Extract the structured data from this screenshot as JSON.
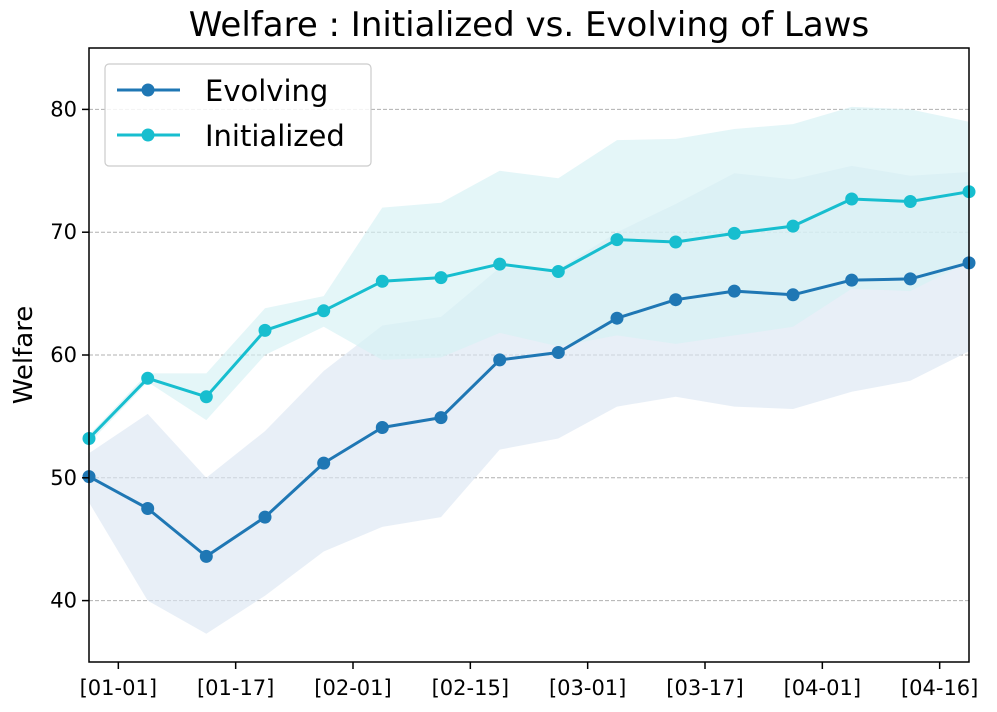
{
  "chart_data": {
    "type": "line",
    "title": "Welfare : Initialized vs. Evolving of Laws",
    "xlabel": "",
    "ylabel": "Welfare",
    "x_ticks": [
      "[01-01]",
      "[01-17]",
      "[02-01]",
      "[02-15]",
      "[03-01]",
      "[03-17]",
      "[04-01]",
      "[04-16]"
    ],
    "y_ticks": [
      40,
      50,
      60,
      70,
      80
    ],
    "ylim": [
      35,
      85
    ],
    "xlim": [
      -0.5,
      14.5
    ],
    "grid": "horizontal-dashed",
    "legend_position": "top-left",
    "series": [
      {
        "name": "Evolving",
        "color": "#1f77b4",
        "band_color": "#dbe6f3",
        "x": [
          -0.5,
          0.5,
          1.5,
          2.5,
          3.5,
          4.5,
          5.5,
          6.5,
          7.5,
          8.5,
          9.5,
          10.5,
          11.5,
          12.5,
          13.5,
          14.5
        ],
        "values": [
          50.1,
          47.5,
          43.6,
          46.8,
          51.2,
          54.1,
          54.9,
          59.6,
          60.2,
          63.0,
          64.5,
          65.2,
          64.9,
          66.1,
          66.2,
          67.5
        ],
        "upper": [
          52.0,
          55.2,
          50.0,
          53.8,
          58.7,
          62.4,
          63.1,
          67.1,
          67.0,
          70.0,
          72.3,
          74.8,
          74.3,
          75.4,
          74.6,
          74.9
        ],
        "lower": [
          48.0,
          40.0,
          37.3,
          40.4,
          44.0,
          46.0,
          46.8,
          52.3,
          53.2,
          55.8,
          56.6,
          55.8,
          55.6,
          57.0,
          57.9,
          60.3
        ]
      },
      {
        "name": "Initialized",
        "color": "#17becf",
        "band_color": "#d6f1f5",
        "x": [
          -0.5,
          0.5,
          1.5,
          2.5,
          3.5,
          4.5,
          5.5,
          6.5,
          7.5,
          8.5,
          9.5,
          10.5,
          11.5,
          12.5,
          13.5,
          14.5
        ],
        "values": [
          53.2,
          58.1,
          56.6,
          62.0,
          63.6,
          66.0,
          66.3,
          67.4,
          66.8,
          69.4,
          69.2,
          69.9,
          70.5,
          72.7,
          72.5,
          73.3
        ],
        "upper": [
          53.5,
          58.5,
          58.5,
          63.8,
          64.8,
          72.0,
          72.4,
          75.0,
          74.4,
          77.5,
          77.6,
          78.4,
          78.8,
          80.2,
          80.0,
          79.0
        ],
        "lower": [
          52.8,
          57.8,
          54.7,
          60.0,
          62.3,
          59.6,
          59.8,
          61.8,
          60.7,
          61.6,
          60.9,
          61.6,
          62.3,
          65.4,
          65.2,
          67.6
        ]
      }
    ]
  }
}
